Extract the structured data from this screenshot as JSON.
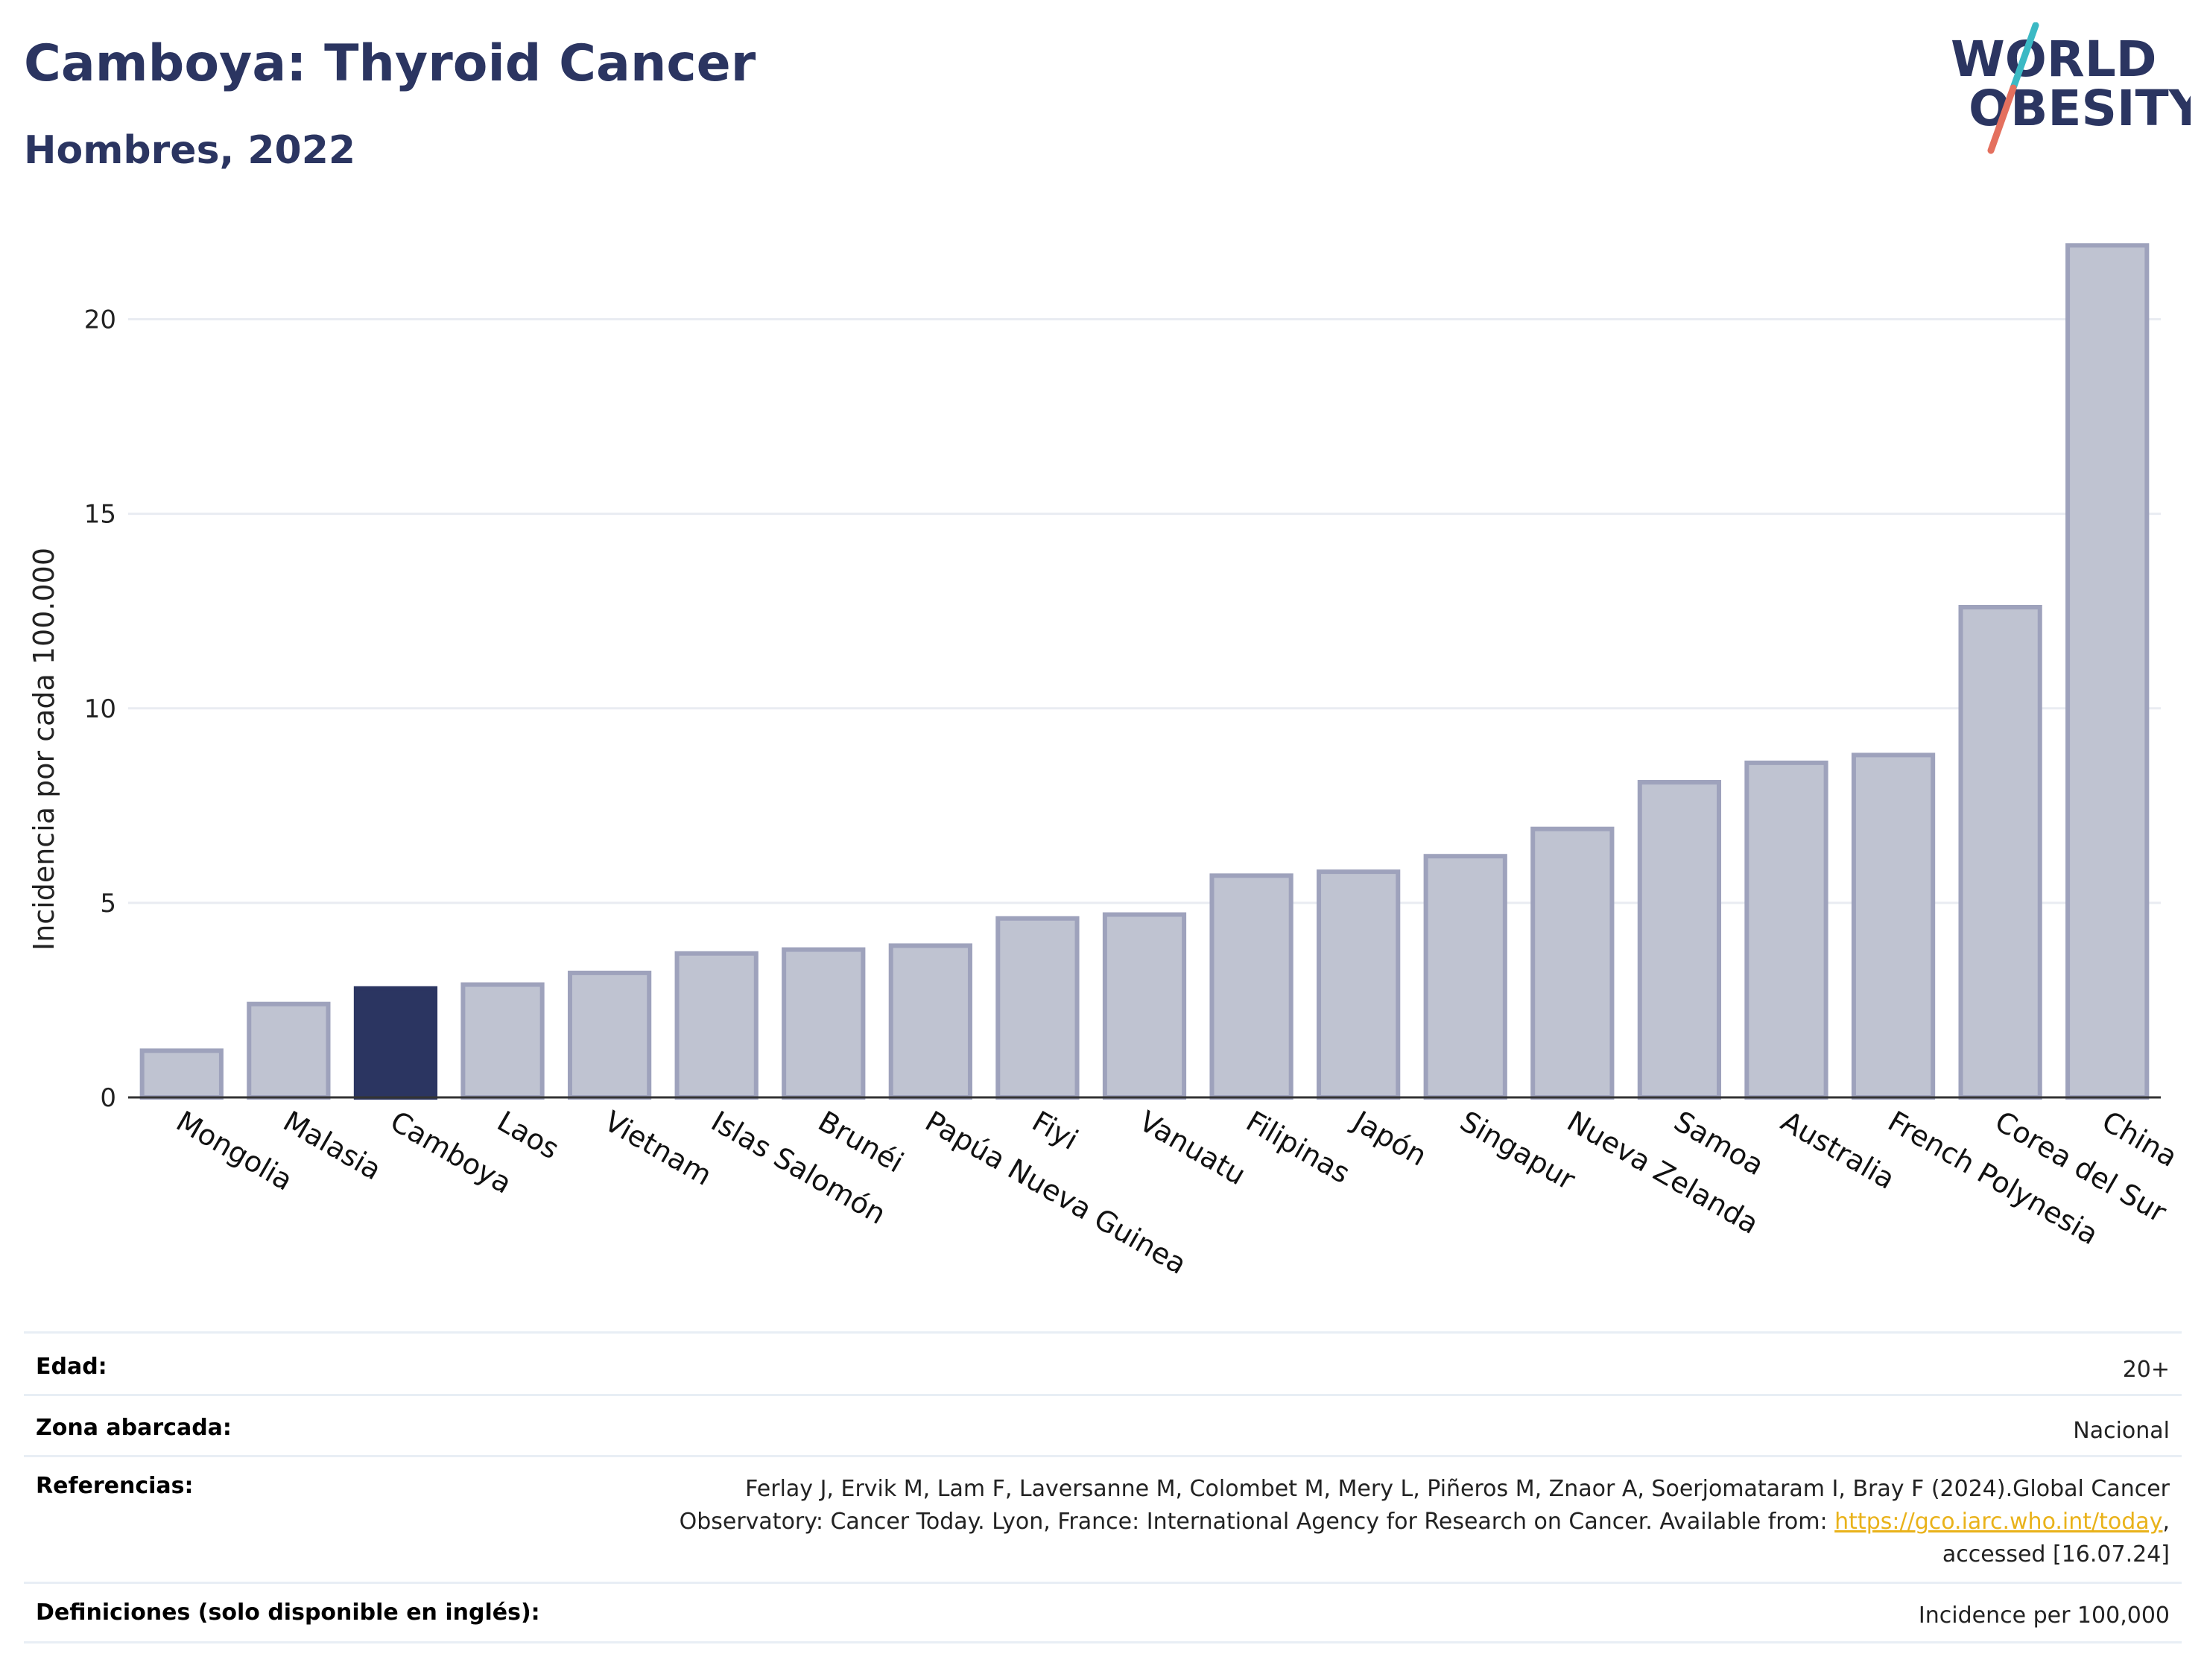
{
  "header": {
    "title": "Camboya: Thyroid Cancer",
    "subtitle": "Hombres, 2022"
  },
  "logo": {
    "line1": "WORLD",
    "line2": "OBESITY"
  },
  "colors": {
    "highlight": "#2b3561",
    "bar": "#bfc3d1",
    "bar_border": "#9ea2bc",
    "title": "#2b3561",
    "link": "#e9b21a"
  },
  "chart_data": {
    "type": "bar",
    "ylabel": "Incidencia por cada 100.000",
    "xlabel": "",
    "ylim": [
      0,
      22.5
    ],
    "yticks": [
      0,
      5,
      10,
      15,
      20
    ],
    "grid": true,
    "highlight": "Camboya",
    "categories": [
      "Mongolia",
      "Malasia",
      "Camboya",
      "Laos",
      "Vietnam",
      "Islas Salomón",
      "Brunéi",
      "Papúa Nueva Guinea",
      "Fiyi",
      "Vanuatu",
      "Filipinas",
      "Japón",
      "Singapur",
      "Nueva Zelanda",
      "Samoa",
      "Australia",
      "French Polynesia",
      "Corea del Sur",
      "China"
    ],
    "values": [
      1.2,
      2.4,
      2.8,
      2.9,
      3.2,
      3.7,
      3.8,
      3.9,
      4.6,
      4.7,
      5.7,
      5.8,
      6.2,
      6.9,
      8.1,
      8.6,
      8.8,
      12.6,
      21.9
    ]
  },
  "info": {
    "age_label": "Edad:",
    "age_value": "20+",
    "zone_label": "Zona abarcada:",
    "zone_value": "Nacional",
    "ref_label": "Referencias:",
    "ref_line1": "Ferlay J, Ervik M, Lam F, Laversanne M, Colombet M, Mery L, Piñeros M, Znaor A, Soerjomataram I, Bray F (2024).Global Cancer",
    "ref_line2_pre": "Observatory: Cancer Today. Lyon, France: International Agency for Research on Cancer. Available from: ",
    "ref_link": "https://gco.iarc.who.int/today",
    "ref_line2_post": ",",
    "ref_line3": "accessed [16.07.24]",
    "def_label": "Definiciones (solo disponible en inglés):",
    "def_value": "Incidence per 100,000"
  }
}
